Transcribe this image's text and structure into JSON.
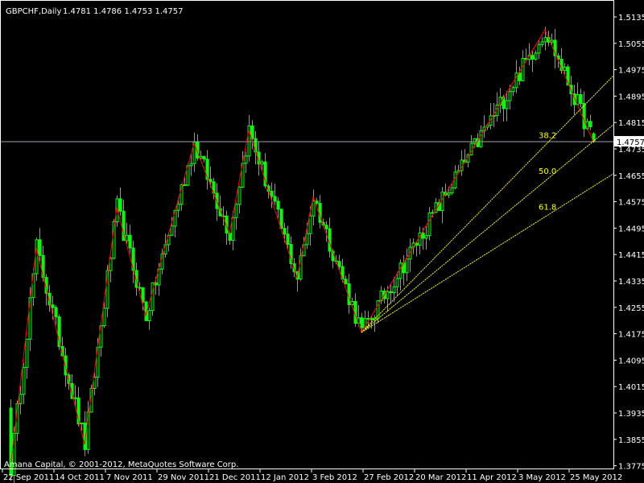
{
  "header": {
    "symbol": "GBPCHF,Daily",
    "ohlc": "1.4781 1.4786 1.4753 1.4757"
  },
  "copyright": "Amana Capital, © 2001-2012, MetaQuotes Software Corp.",
  "colors": {
    "background": "#000000",
    "axis": "#ffffff",
    "candle": "#00ff00",
    "zigzag": "#ff0000",
    "fib_fan": "#ffff00",
    "bid_line": "#a0a0b0"
  },
  "chart_data": {
    "type": "candlestick",
    "symbol": "GBPCHF",
    "timeframe": "Daily",
    "ylim": [
      1.3775,
      1.5135
    ],
    "y_ticks": [
      "1.5135",
      "1.5055",
      "1.4975",
      "1.4895",
      "1.4815",
      "1.4735",
      "1.4655",
      "1.4575",
      "1.4495",
      "1.4415",
      "1.4335",
      "1.4255",
      "1.4175",
      "1.4095",
      "1.4015",
      "1.3935",
      "1.3855",
      "1.3775"
    ],
    "x_ticks": [
      "22 Sep 2011",
      "14 Oct 2011",
      "7 Nov 2011",
      "29 Nov 2011",
      "21 Dec 2011",
      "12 Jan 2012",
      "3 Feb 2012",
      "27 Feb 2012",
      "20 Mar 2012",
      "11 Apr 2012",
      "3 May 2012",
      "25 May 2012"
    ],
    "last": {
      "open": 1.4781,
      "high": 1.4786,
      "low": 1.4753,
      "close": 1.4757
    },
    "bid_label": "1.4757",
    "zigzag_pivots": [
      {
        "bar": 2,
        "price": 1.377
      },
      {
        "bar": 10,
        "price": 1.4435
      },
      {
        "bar": 25,
        "price": 1.384
      },
      {
        "bar": 35,
        "price": 1.4557
      },
      {
        "bar": 44,
        "price": 1.423
      },
      {
        "bar": 59,
        "price": 1.4752
      },
      {
        "bar": 70,
        "price": 1.4479
      },
      {
        "bar": 76,
        "price": 1.4791
      },
      {
        "bar": 91,
        "price": 1.4345
      },
      {
        "bar": 96,
        "price": 1.4589
      },
      {
        "bar": 111,
        "price": 1.4179
      },
      {
        "bar": 168,
        "price": 1.5096
      },
      {
        "bar": 183,
        "price": 1.4757
      }
    ],
    "fib_fan": {
      "from": {
        "bar": 111,
        "price": 1.4179
      },
      "to": {
        "bar": 168,
        "price": 1.5096
      },
      "levels": [
        {
          "value": 0.382,
          "label": "38.2"
        },
        {
          "value": 0.5,
          "label": "50.0"
        },
        {
          "value": 0.618,
          "label": "61.8"
        }
      ]
    }
  }
}
